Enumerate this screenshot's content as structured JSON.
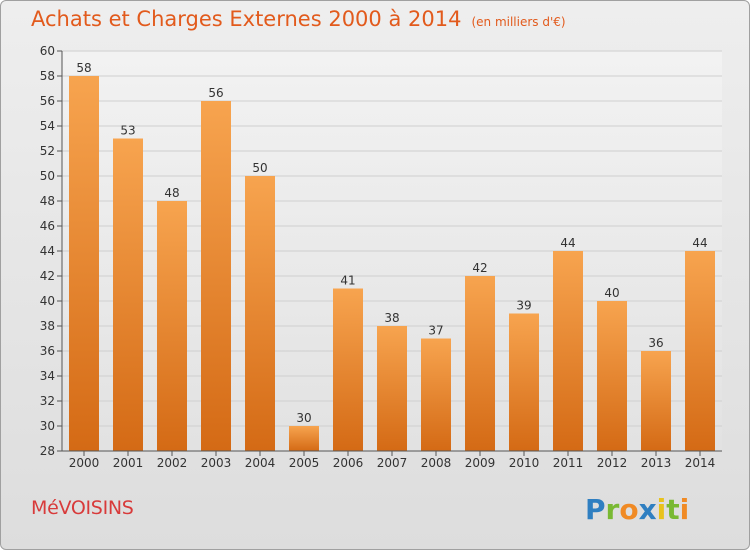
{
  "title": "Achats et Charges Externes 2000 à 2014",
  "unit": "(en milliers d'€)",
  "commune": "MéVOISINS",
  "logo_text": "Proxiti",
  "colors": {
    "title": "#e25a1c",
    "bar_top": "#f7a44f",
    "bar_bottom": "#d46a15",
    "commune": "#d83a3a",
    "axis": "#555555"
  },
  "chart_data": {
    "type": "bar",
    "categories": [
      "2000",
      "2001",
      "2002",
      "2003",
      "2004",
      "2005",
      "2006",
      "2007",
      "2008",
      "2009",
      "2010",
      "2011",
      "2012",
      "2013",
      "2014"
    ],
    "values": [
      58,
      53,
      48,
      56,
      50,
      30,
      41,
      38,
      37,
      42,
      39,
      44,
      40,
      36,
      44
    ],
    "ylim": [
      28,
      60
    ],
    "yticks": [
      28,
      30,
      32,
      34,
      36,
      38,
      40,
      42,
      44,
      46,
      48,
      50,
      52,
      54,
      56,
      58,
      60
    ],
    "grid": true,
    "legend": "none"
  }
}
